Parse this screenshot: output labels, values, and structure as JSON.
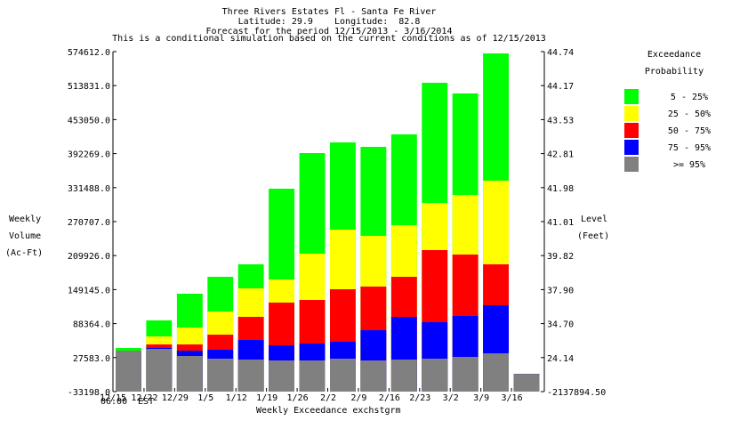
{
  "chart_data": {
    "type": "bar",
    "stacked": true,
    "title_lines": [
      "Three Rivers Estates Fl - Santa Fe River",
      "Latitude: 29.9    Longitude:  82.8",
      "Forecast for the period 12/15/2013 - 3/16/2014",
      "This is a conditional simulation based on the current conditions as of 12/15/2013"
    ],
    "xlabel": "Weekly Exceedance exchstgrm",
    "x_sublabel": [
      "06:00",
      "EST"
    ],
    "ylabel_left": [
      "Weekly",
      "Volume",
      "(Ac-Ft)"
    ],
    "ylabel_right": [
      "Level",
      "(Feet)"
    ],
    "ylim": [
      -33198.0,
      574612.0
    ],
    "yticks_left": [
      "574612.0",
      "513831.0",
      "453050.0",
      "392269.0",
      "331488.0",
      "270707.0",
      "209926.0",
      "149145.0",
      "88364.0",
      "27583.0",
      "-33198.0"
    ],
    "yticks_right": [
      "44.74",
      "44.17",
      "43.53",
      "42.81",
      "41.98",
      "41.01",
      "39.82",
      "37.90",
      "34.70",
      "24.14",
      "-2137894.50"
    ],
    "categories": [
      "12/15",
      "12/22",
      "12/29",
      "1/5",
      "1/12",
      "1/19",
      "1/26",
      "2/2",
      "2/9",
      "2/16",
      "2/23",
      "3/2",
      "3/9",
      "3/16",
      ""
    ],
    "legend_title": [
      "Exceedance",
      "Probability"
    ],
    "series": [
      {
        "name": ">= 95%",
        "color": "#808080",
        "values": [
          40036,
          43218,
          30490,
          25717,
          24126,
          22535,
          22535,
          25717,
          22535,
          24126,
          25717,
          28899,
          35263,
          -1739
        ]
      },
      {
        "name": "75 - 95%",
        "color": "#0000ff",
        "values": [
          40036,
          44809,
          40036,
          41627,
          59128,
          49582,
          52764,
          55946,
          76629,
          100494,
          90948,
          102085,
          121177,
          -1739
        ]
      },
      {
        "name": "50 - 75%",
        "color": "#ff0000",
        "values": [
          40036,
          51173,
          51173,
          68674,
          100494,
          125950,
          130723,
          149815,
          154588,
          172089,
          219819,
          211864,
          194363,
          -1739
        ]
      },
      {
        "name": "25 - 50%",
        "color": "#ffff00",
        "values": [
          40036,
          65492,
          81402,
          110040,
          151406,
          167316,
          213455,
          256412,
          245275,
          264367,
          304142,
          318461,
          343917,
          -1739
        ]
      },
      {
        "name": "5 - 25%",
        "color": "#00ff00",
        "values": [
          44809,
          94130,
          141860,
          172089,
          194363,
          329598,
          393238,
          412330,
          404375,
          426649,
          518927,
          499835,
          571430,
          -1739
        ]
      }
    ],
    "series_note": "values are cumulative stack tops (Ac-Ft)",
    "legend": [
      {
        "label": "5 - 25%",
        "color": "#00ff00"
      },
      {
        "label": "25 - 50%",
        "color": "#ffff00"
      },
      {
        "label": "50 - 75%",
        "color": "#ff0000"
      },
      {
        "label": "75 - 95%",
        "color": "#0000ff"
      },
      {
        "label": ">= 95%",
        "color": "#808080"
      }
    ],
    "legend_position": "right",
    "grid": false
  }
}
